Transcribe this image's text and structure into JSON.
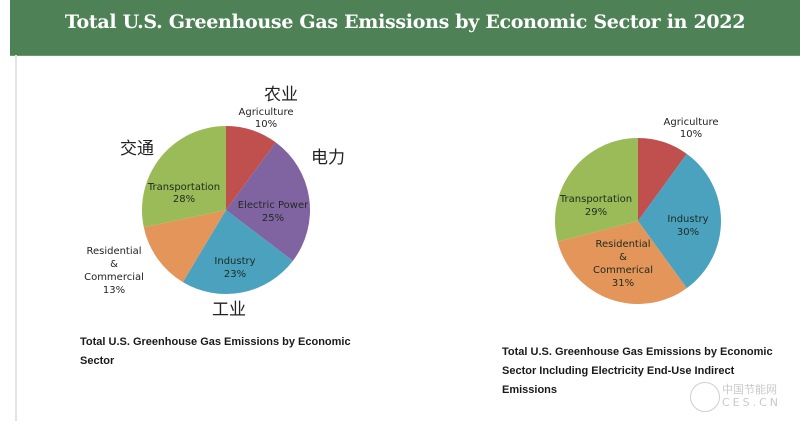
{
  "header": {
    "title": "Total U.S. Greenhouse Gas Emissions by Economic Sector in 2022"
  },
  "colors": {
    "header_bg": "#4e8256",
    "agriculture": "#c0504d",
    "electric_power": "#8064a2",
    "industry": "#4aa2bf",
    "residential_commercial": "#e3955a",
    "transportation": "#9bbb59"
  },
  "chart_data": [
    {
      "type": "pie",
      "title": "Total U.S. Greenhouse Gas Emissions by Economic Sector",
      "categories": [
        "Agriculture",
        "Electric Power",
        "Industry",
        "Residential & Commercial",
        "Transportation"
      ],
      "values": [
        10,
        25,
        23,
        13,
        28
      ],
      "unit": "%",
      "annotations_cn": {
        "Agriculture": "农业",
        "Electric Power": "电力",
        "Industry": "工业",
        "Transportation": "交通"
      }
    },
    {
      "type": "pie",
      "title": "Total U.S. Greenhouse Gas Emissions by Economic Sector Including Electricity End-Use Indirect Emissions",
      "categories": [
        "Agriculture",
        "Industry",
        "Residential & Commerical",
        "Transportation"
      ],
      "values": [
        10,
        30,
        31,
        29
      ],
      "unit": "%"
    }
  ],
  "left_chart": {
    "labels": {
      "agriculture": {
        "name": "Agriculture",
        "pct": "10%",
        "cn": "农业"
      },
      "electric": {
        "name": "Electric Power",
        "pct": "25%",
        "cn": "电力"
      },
      "industry": {
        "name": "Industry",
        "pct": "23%",
        "cn": "工业"
      },
      "residential": {
        "line1": "Residential",
        "line2": "&",
        "line3": "Commercial",
        "pct": "13%"
      },
      "transportation": {
        "name": "Transportation",
        "pct": "28%",
        "cn": "交通"
      }
    },
    "caption_line1": "Total U.S. Greenhouse Gas Emissions by Economic",
    "caption_line2": "Sector"
  },
  "right_chart": {
    "labels": {
      "agriculture": {
        "name": "Agriculture",
        "pct": "10%"
      },
      "industry": {
        "name": "Industry",
        "pct": "30%"
      },
      "residential": {
        "line1": "Residential",
        "line2": "&",
        "line3": "Commerical",
        "pct": "31%"
      },
      "transportation": {
        "name": "Transportation",
        "pct": "29%"
      }
    },
    "caption_line1": "Total U.S. Greenhouse Gas Emissions by Economic",
    "caption_line2": "Sector Including Electricity End-Use Indirect",
    "caption_line3": "Emissions"
  },
  "watermark": {
    "line1": "中国节能网",
    "line2": "CES.CN"
  }
}
